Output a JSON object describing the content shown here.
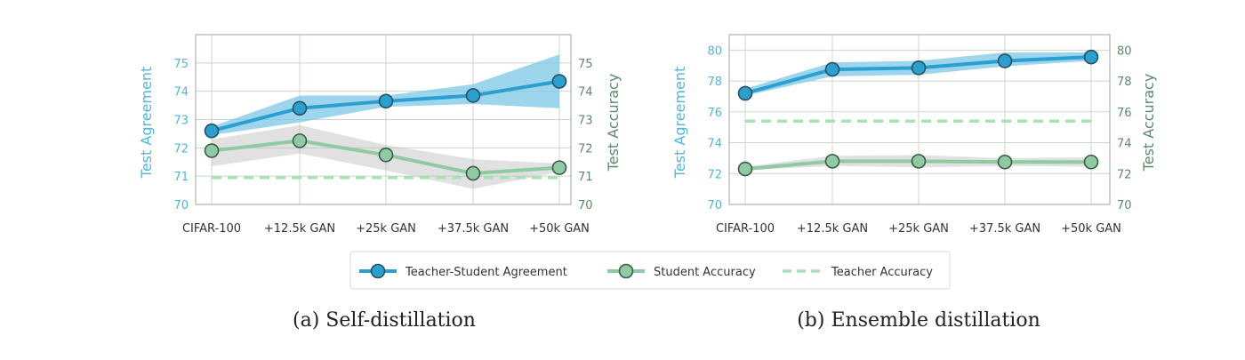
{
  "colors": {
    "agreement": "#2a9fd0",
    "agreement_band": "#7cc8e6",
    "student": "#8fcba2",
    "student_band": "#bdbdbd",
    "teacher": "#a9e0b9",
    "left_axis_text": "#4db6e0",
    "right_axis_text": "#5a8a6a",
    "grid": "#c8d8c8",
    "spine": "#aab8aa"
  },
  "legend": {
    "agreement": "Teacher-Student Agreement",
    "student": "Student Accuracy",
    "teacher": "Teacher Accuracy"
  },
  "chart_data": [
    {
      "type": "line",
      "caption": "(a) Self-distillation",
      "categories": [
        "CIFAR-100",
        "+12.5k GAN",
        "+25k GAN",
        "+37.5k GAN",
        "+50k GAN"
      ],
      "ylabel_left": "Test Agreement",
      "ylabel_right": "Test Accuracy",
      "ylim": [
        70,
        76
      ],
      "yticks": [
        70,
        71,
        72,
        73,
        74,
        75
      ],
      "grid": true,
      "series": [
        {
          "name": "Teacher-Student Agreement",
          "values": [
            72.6,
            73.4,
            73.65,
            73.85,
            74.35
          ],
          "band_low": [
            72.45,
            72.9,
            73.45,
            73.55,
            73.4
          ],
          "band_high": [
            72.75,
            73.85,
            73.85,
            74.25,
            75.3
          ]
        },
        {
          "name": "Student Accuracy",
          "values": [
            71.9,
            72.25,
            71.75,
            71.1,
            71.3
          ],
          "band_low": [
            71.35,
            71.8,
            71.2,
            70.55,
            71.15
          ],
          "band_high": [
            72.3,
            72.8,
            72.1,
            71.6,
            71.45
          ]
        },
        {
          "name": "Teacher Accuracy",
          "values": [
            70.95,
            70.95,
            70.95,
            70.95,
            70.95
          ]
        }
      ]
    },
    {
      "type": "line",
      "caption": "(b) Ensemble distillation",
      "categories": [
        "CIFAR-100",
        "+12.5k GAN",
        "+25k GAN",
        "+37.5k GAN",
        "+50k GAN"
      ],
      "ylabel_left": "Test Agreement",
      "ylabel_right": "Test Accuracy",
      "ylim": [
        70,
        81
      ],
      "yticks": [
        70,
        72,
        74,
        76,
        78,
        80
      ],
      "grid": true,
      "series": [
        {
          "name": "Teacher-Student Agreement",
          "values": [
            77.2,
            78.75,
            78.85,
            79.3,
            79.55
          ],
          "band_low": [
            77.05,
            78.3,
            78.4,
            78.95,
            79.3
          ],
          "band_high": [
            77.5,
            79.2,
            79.3,
            79.85,
            79.85
          ]
        },
        {
          "name": "Student Accuracy",
          "values": [
            72.3,
            72.8,
            72.8,
            72.75,
            72.75
          ],
          "band_low": [
            72.2,
            72.5,
            72.4,
            72.5,
            72.45
          ],
          "band_high": [
            72.45,
            73.15,
            73.2,
            73.0,
            73.05
          ]
        },
        {
          "name": "Teacher Accuracy",
          "values": [
            75.4,
            75.4,
            75.4,
            75.4,
            75.4
          ]
        }
      ]
    }
  ]
}
